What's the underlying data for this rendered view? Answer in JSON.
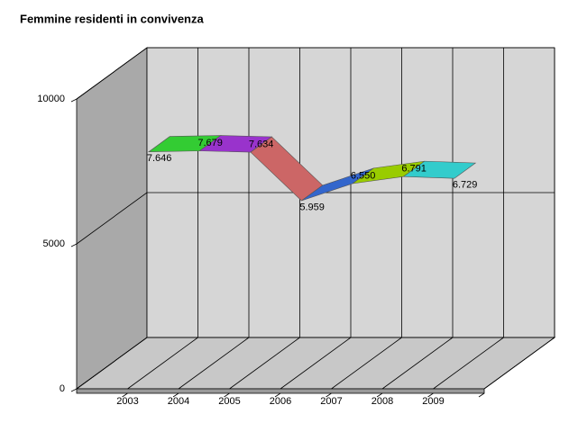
{
  "chart_data": {
    "type": "line",
    "title": "Femmine residenti in convivenza",
    "categories": [
      "2003",
      "2004",
      "2005",
      "2006",
      "2007",
      "2008",
      "2009"
    ],
    "series": [
      {
        "values": [
          7646,
          7679,
          7634,
          5959,
          6550,
          6791,
          6729
        ],
        "value_labels": [
          "7.646",
          "7.679",
          "7.634",
          "5.959",
          "6.550",
          "6.791",
          "6.729"
        ],
        "colors": [
          "#33cc33",
          "#9933cc",
          "#cc6666",
          "#3366cc",
          "#99cc00",
          "#33cccc"
        ]
      }
    ],
    "ylim": [
      0,
      10000
    ],
    "yticks": [
      0,
      5000,
      10000
    ],
    "grid": true
  }
}
